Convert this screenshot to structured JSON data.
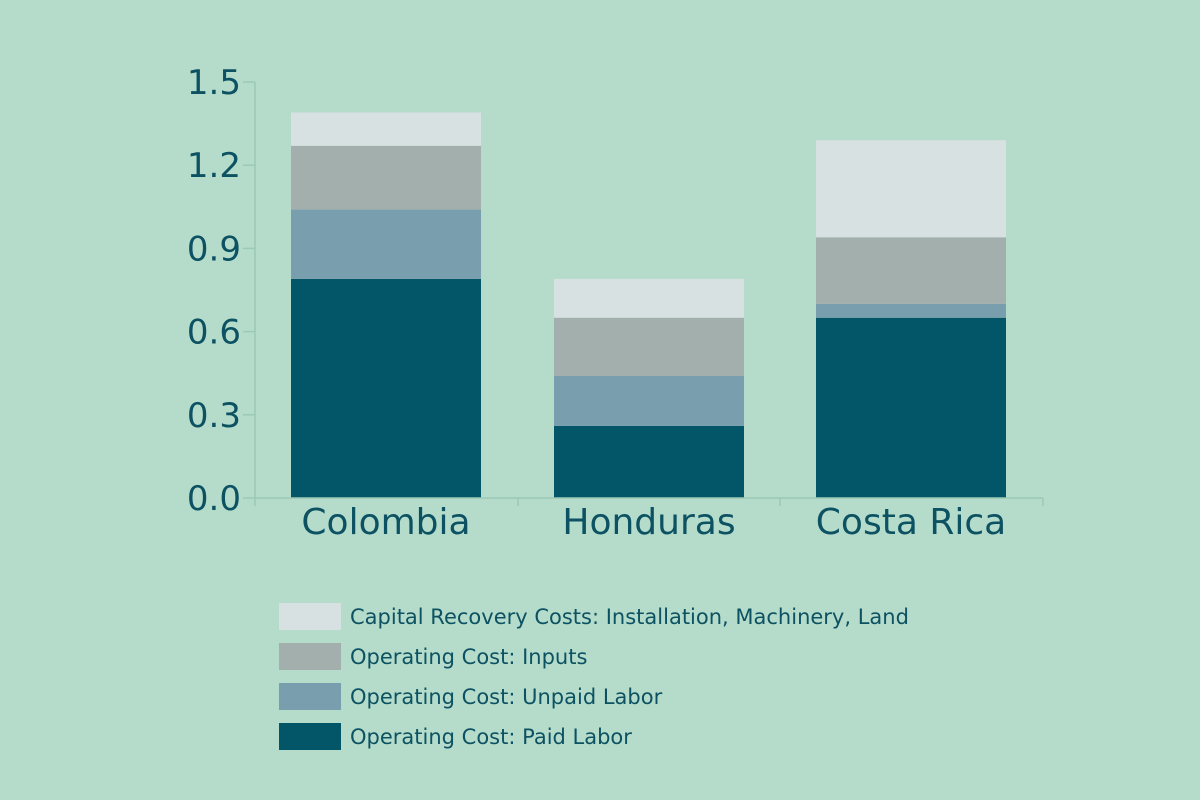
{
  "chart_data": {
    "type": "bar",
    "stacked": true,
    "title": "",
    "xlabel": "",
    "ylabel": "",
    "categories": [
      "Colombia",
      "Honduras",
      "Costa Rica"
    ],
    "series": [
      {
        "name": "Operating Cost: Paid Labor",
        "color": "#025667",
        "values": [
          0.79,
          0.26,
          0.65
        ]
      },
      {
        "name": "Operating Cost: Unpaid Labor",
        "color": "#799eae",
        "values": [
          0.25,
          0.18,
          0.05
        ]
      },
      {
        "name": "Operating Cost: Inputs",
        "color": "#a2afad",
        "values": [
          0.23,
          0.21,
          0.24
        ]
      },
      {
        "name": "Capital Recovery Costs: Installation, Machinery, Land",
        "color": "#d8e1e1",
        "values": [
          0.12,
          0.14,
          0.35
        ]
      }
    ],
    "y_ticks": [
      "0.0",
      "0.3",
      "0.6",
      "0.9",
      "1.2",
      "1.5"
    ],
    "ylim": [
      0,
      1.5
    ],
    "grid": false,
    "legend_position": "bottom",
    "colors": {
      "background": "#b5dccb",
      "axis": "#9cc8b6",
      "text": "#0d5262"
    }
  }
}
